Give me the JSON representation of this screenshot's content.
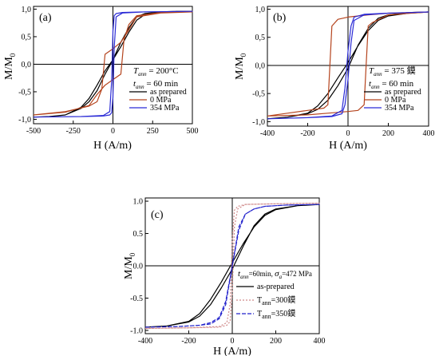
{
  "figure": {
    "ylabel": "M/M",
    "ylabel_sub": "0",
    "xlabel": "H (A/m)"
  },
  "colors": {
    "as_prepared": "#000000",
    "mpa0": "#b5441e",
    "mpa354": "#2b2bd6",
    "t300": "#d08a8a",
    "t350": "#2222cc"
  },
  "chart_data": [
    {
      "panel_label": "(a)",
      "type": "line",
      "xlim": [
        -500,
        500
      ],
      "ylim": [
        -1.08,
        1.05
      ],
      "xticks": [
        -500,
        -250,
        0,
        250,
        500
      ],
      "xtick_labels": [
        "-500",
        "-250",
        "0",
        "250",
        "500"
      ],
      "yticks": [
        -1.0,
        -0.5,
        0.0,
        0.5,
        1.0
      ],
      "ytick_labels": [
        "-1,0",
        "-0,5",
        "0,0",
        "0,5",
        "1,0"
      ],
      "annotation": {
        "line1_T": "T",
        "line1_sub": "ann",
        "line1_rest": " = 200°C",
        "line2_t": "t",
        "line2_sub": "ann",
        "line2_rest": " = 60 min"
      },
      "legend": [
        {
          "label": "as prepared",
          "color": "#000000",
          "style": "solid"
        },
        {
          "label": "0 MPa",
          "color": "#b5441e",
          "style": "solid"
        },
        {
          "label": "354 MPa",
          "color": "#2b2bd6",
          "style": "solid"
        }
      ],
      "series": [
        {
          "name": "as prepared",
          "color": "#000000",
          "dash": "",
          "x": [
            -500,
            -400,
            -300,
            -200,
            -150,
            -100,
            -50,
            0,
            50,
            100,
            150,
            200,
            300,
            400,
            500,
            400,
            300,
            200,
            150,
            100,
            50,
            0,
            -50,
            -100,
            -150,
            -200,
            -300,
            -400,
            -500
          ],
          "y": [
            -0.96,
            -0.95,
            -0.92,
            -0.78,
            -0.62,
            -0.38,
            -0.12,
            0.08,
            0.32,
            0.58,
            0.8,
            0.9,
            0.94,
            0.96,
            0.96,
            0.96,
            0.95,
            0.92,
            0.86,
            0.66,
            0.4,
            0.08,
            -0.18,
            -0.48,
            -0.68,
            -0.8,
            -0.92,
            -0.95,
            -0.96
          ]
        },
        {
          "name": "0 MPa",
          "color": "#b5441e",
          "dash": "",
          "x": [
            -500,
            -300,
            -150,
            -100,
            -70,
            -50,
            0,
            50,
            100,
            150,
            300,
            500,
            300,
            150,
            100,
            70,
            50,
            0,
            -50,
            -100,
            -150,
            -300,
            -500
          ],
          "y": [
            -0.92,
            -0.86,
            -0.76,
            -0.68,
            -0.45,
            0.18,
            0.28,
            0.4,
            0.62,
            0.86,
            0.93,
            0.95,
            0.94,
            0.88,
            0.72,
            0.45,
            -0.18,
            -0.28,
            -0.38,
            -0.55,
            -0.75,
            -0.87,
            -0.92
          ]
        },
        {
          "name": "354 MPa",
          "color": "#2b2bd6",
          "dash": "",
          "x": [
            -500,
            -200,
            -60,
            -20,
            -8,
            0,
            8,
            20,
            60,
            200,
            500,
            200,
            60,
            20,
            8,
            0,
            -8,
            -20,
            -60,
            -200,
            -500
          ],
          "y": [
            -0.96,
            -0.95,
            -0.93,
            -0.86,
            -0.3,
            0.6,
            0.88,
            0.92,
            0.94,
            0.95,
            0.96,
            0.95,
            0.93,
            0.86,
            0.3,
            -0.6,
            -0.88,
            -0.92,
            -0.94,
            -0.95,
            -0.96
          ]
        }
      ]
    },
    {
      "panel_label": "(b)",
      "type": "line",
      "xlim": [
        -400,
        400
      ],
      "ylim": [
        -1.08,
        1.05
      ],
      "xticks": [
        -400,
        -200,
        0,
        200,
        400
      ],
      "xtick_labels": [
        "-400",
        "-200",
        "0",
        "200",
        "400"
      ],
      "yticks": [
        -1.0,
        -0.5,
        0.0,
        0.5,
        1.0
      ],
      "ytick_labels": [
        "-1,0",
        "-0,5",
        "0,0",
        "0,5",
        "1,0"
      ],
      "annotation": {
        "line1_T": "T",
        "line1_sub": "ann",
        "line1_rest": " = 375 鏌",
        "line2_t": "t",
        "line2_sub": "ann",
        "line2_rest": " = 60 min"
      },
      "legend": [
        {
          "label": "as prepared",
          "color": "#000000",
          "style": "solid"
        },
        {
          "label": "0 MPa",
          "color": "#b5441e",
          "style": "solid"
        },
        {
          "label": "354 MPa",
          "color": "#2b2bd6",
          "style": "solid"
        }
      ],
      "series": [
        {
          "name": "as prepared",
          "color": "#000000",
          "dash": "",
          "x": [
            -400,
            -300,
            -200,
            -150,
            -100,
            -50,
            0,
            50,
            100,
            150,
            200,
            300,
            400,
            300,
            200,
            150,
            100,
            50,
            0,
            -50,
            -100,
            -150,
            -200,
            -300,
            -400
          ],
          "y": [
            -0.95,
            -0.92,
            -0.85,
            -0.72,
            -0.5,
            -0.22,
            0.05,
            0.35,
            0.62,
            0.8,
            0.88,
            0.93,
            0.95,
            0.94,
            0.9,
            0.84,
            0.66,
            0.36,
            -0.05,
            -0.36,
            -0.62,
            -0.78,
            -0.86,
            -0.92,
            -0.95
          ]
        },
        {
          "name": "0 MPa",
          "color": "#b5441e",
          "dash": "",
          "x": [
            -400,
            -300,
            -200,
            -120,
            -100,
            -90,
            -80,
            -50,
            0,
            100,
            200,
            400,
            200,
            120,
            100,
            90,
            80,
            50,
            0,
            -100,
            -200,
            -400
          ],
          "y": [
            -0.9,
            -0.85,
            -0.8,
            -0.76,
            -0.7,
            0.0,
            0.7,
            0.82,
            0.86,
            0.9,
            0.93,
            0.95,
            0.9,
            0.76,
            0.7,
            0.0,
            -0.7,
            -0.8,
            -0.82,
            -0.85,
            -0.88,
            -0.9
          ]
        },
        {
          "name": "354 MPa",
          "color": "#2b2bd6",
          "dash": "",
          "x": [
            -400,
            -200,
            -80,
            -30,
            -15,
            0,
            15,
            30,
            80,
            200,
            400,
            200,
            80,
            30,
            15,
            0,
            -15,
            -30,
            -80,
            -200,
            -400
          ],
          "y": [
            -0.95,
            -0.93,
            -0.9,
            -0.8,
            -0.4,
            0.25,
            0.7,
            0.86,
            0.91,
            0.93,
            0.95,
            0.93,
            0.9,
            0.8,
            0.4,
            -0.25,
            -0.7,
            -0.86,
            -0.91,
            -0.93,
            -0.95
          ]
        }
      ]
    },
    {
      "panel_label": "(c)",
      "type": "line",
      "xlim": [
        -400,
        400
      ],
      "ylim": [
        -1.05,
        1.05
      ],
      "xticks": [
        -400,
        -200,
        0,
        200,
        400
      ],
      "xtick_labels": [
        "-400",
        "-200",
        "0",
        "200",
        "400"
      ],
      "yticks": [
        -1.0,
        -0.5,
        0.0,
        0.5,
        1.0
      ],
      "ytick_labels": [
        "-1.0",
        "-0.5",
        "0.0",
        "0.5",
        "1.0"
      ],
      "annotation": {
        "line1_t": "t",
        "line1_sub": "ann",
        "line1_rest": "=60min, ",
        "line1_sigma": "σ",
        "line1_sigma_sub": "a",
        "line1_sigma_rest": "=472 MPa"
      },
      "legend": [
        {
          "label": "as-prepared",
          "color": "#000000",
          "style": "solid"
        },
        {
          "label": "T",
          "label_sub": "ann",
          "label_rest": "=300鏌",
          "color": "#d08a8a",
          "style": "dotted"
        },
        {
          "label": "T",
          "label_sub": "ann",
          "label_rest": "=350鏌",
          "color": "#2222cc",
          "style": "dashed"
        }
      ],
      "series": [
        {
          "name": "as-prepared",
          "color": "#000000",
          "dash": "",
          "x": [
            -400,
            -300,
            -200,
            -150,
            -100,
            -50,
            0,
            50,
            100,
            150,
            200,
            300,
            400,
            300,
            200,
            150,
            100,
            50,
            0,
            -50,
            -100,
            -150,
            -200,
            -300,
            -400
          ],
          "y": [
            -0.95,
            -0.93,
            -0.86,
            -0.74,
            -0.52,
            -0.25,
            0.05,
            0.34,
            0.6,
            0.78,
            0.87,
            0.93,
            0.95,
            0.93,
            0.88,
            0.8,
            0.62,
            0.3,
            -0.05,
            -0.34,
            -0.6,
            -0.78,
            -0.87,
            -0.93,
            -0.95
          ]
        },
        {
          "name": "T_ann=300",
          "color": "#d08a8a",
          "dash": "2,2",
          "x": [
            -400,
            -200,
            -60,
            -25,
            -10,
            0,
            10,
            25,
            60,
            200,
            400,
            200,
            60,
            25,
            10,
            0,
            -10,
            -25,
            -60,
            -200,
            -400
          ],
          "y": [
            -0.97,
            -0.96,
            -0.94,
            -0.88,
            -0.6,
            0.4,
            0.86,
            0.92,
            0.95,
            0.96,
            0.97,
            0.96,
            0.95,
            0.88,
            0.6,
            -0.4,
            -0.86,
            -0.92,
            -0.95,
            -0.96,
            -0.97
          ]
        },
        {
          "name": "T_ann=350",
          "color": "#2222cc",
          "dash": "5,2",
          "x": [
            -400,
            -250,
            -150,
            -100,
            -60,
            -30,
            0,
            30,
            60,
            100,
            150,
            250,
            400,
            250,
            150,
            100,
            60,
            30,
            0,
            -30,
            -60,
            -100,
            -150,
            -250,
            -400
          ],
          "y": [
            -0.95,
            -0.94,
            -0.92,
            -0.9,
            -0.82,
            -0.6,
            0.0,
            0.55,
            0.8,
            0.88,
            0.92,
            0.94,
            0.95,
            0.94,
            0.92,
            0.88,
            0.8,
            0.6,
            0.0,
            -0.55,
            -0.8,
            -0.88,
            -0.92,
            -0.94,
            -0.95
          ]
        }
      ]
    }
  ]
}
